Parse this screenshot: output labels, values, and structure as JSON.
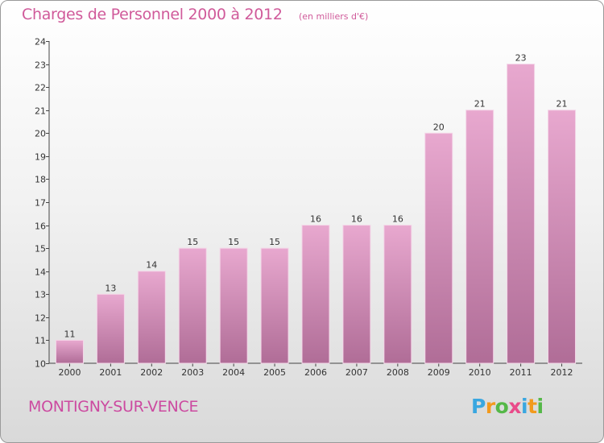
{
  "title": "Charges de Personnel 2000 à 2012",
  "subtitle": "(en milliers d'€)",
  "place": "MONTIGNY-SUR-VENCE",
  "logo": {
    "letters": [
      "P",
      "r",
      "o",
      "x",
      "i",
      "t",
      "i"
    ],
    "colors": [
      "#3aa7e0",
      "#f29a1d",
      "#55b848",
      "#e94b8a",
      "#3aa7e0",
      "#f29a1d",
      "#55b848"
    ]
  },
  "colors": {
    "bar_top": "#e8a8cf",
    "bar_bottom": "#b06d97",
    "bar_edge": "#f4d6e8",
    "accent": "#d05a9a"
  },
  "chart_data": {
    "type": "bar",
    "categories": [
      "2000",
      "2001",
      "2002",
      "2003",
      "2004",
      "2005",
      "2006",
      "2007",
      "2008",
      "2009",
      "2010",
      "2011",
      "2012"
    ],
    "values": [
      11,
      13,
      14,
      15,
      15,
      15,
      16,
      16,
      16,
      20,
      21,
      23,
      21
    ],
    "title": "Charges de Personnel 2000 à 2012",
    "xlabel": "",
    "ylabel": "",
    "ylim": [
      10,
      24
    ],
    "yticks": [
      10,
      11,
      12,
      13,
      14,
      15,
      16,
      17,
      18,
      19,
      20,
      21,
      22,
      23,
      24
    ],
    "grid": false,
    "legend": "none"
  }
}
